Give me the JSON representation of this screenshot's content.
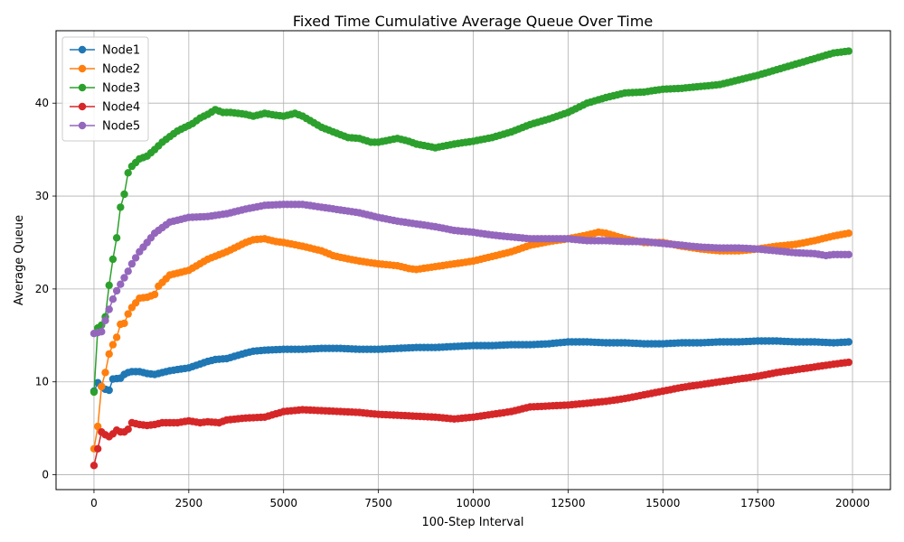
{
  "chart_data": {
    "type": "line",
    "title": "Fixed Time Cumulative Average Queue Over Time",
    "xlabel": "100-Step Interval",
    "ylabel": "Average Queue",
    "xlim": [
      -1000,
      21000
    ],
    "ylim": [
      -1.6,
      47.8
    ],
    "xticks": [
      0,
      2500,
      5000,
      7500,
      10000,
      12500,
      15000,
      17500,
      20000
    ],
    "xtick_labels": [
      "0",
      "2500",
      "5000",
      "7500",
      "10000",
      "12500",
      "15000",
      "17500",
      "20000"
    ],
    "yticks": [
      0,
      10,
      20,
      30,
      40
    ],
    "ytick_labels": [
      "0",
      "10",
      "20",
      "30",
      "40"
    ],
    "grid": true,
    "legend_position": "top-left",
    "x_step": 100,
    "series": [
      {
        "name": "Node1",
        "color": "#1f77b4",
        "points": [
          [
            0,
            9.0
          ],
          [
            100,
            9.9
          ],
          [
            200,
            9.5
          ],
          [
            300,
            9.2
          ],
          [
            400,
            9.1
          ],
          [
            500,
            10.3
          ],
          [
            700,
            10.4
          ],
          [
            800,
            10.8
          ],
          [
            900,
            11.0
          ],
          [
            1000,
            11.1
          ],
          [
            1200,
            11.1
          ],
          [
            1400,
            10.9
          ],
          [
            1600,
            10.8
          ],
          [
            1800,
            11.0
          ],
          [
            2000,
            11.2
          ],
          [
            2500,
            11.5
          ],
          [
            3000,
            12.2
          ],
          [
            3200,
            12.4
          ],
          [
            3500,
            12.5
          ],
          [
            4000,
            13.1
          ],
          [
            4200,
            13.3
          ],
          [
            4500,
            13.4
          ],
          [
            5000,
            13.5
          ],
          [
            5500,
            13.5
          ],
          [
            6000,
            13.6
          ],
          [
            6500,
            13.6
          ],
          [
            7000,
            13.5
          ],
          [
            7500,
            13.5
          ],
          [
            8000,
            13.6
          ],
          [
            8500,
            13.7
          ],
          [
            9000,
            13.7
          ],
          [
            9500,
            13.8
          ],
          [
            10000,
            13.9
          ],
          [
            10500,
            13.9
          ],
          [
            11000,
            14.0
          ],
          [
            11500,
            14.0
          ],
          [
            12000,
            14.1
          ],
          [
            12500,
            14.3
          ],
          [
            13000,
            14.3
          ],
          [
            13500,
            14.2
          ],
          [
            14000,
            14.2
          ],
          [
            14500,
            14.1
          ],
          [
            15000,
            14.1
          ],
          [
            15500,
            14.2
          ],
          [
            16000,
            14.2
          ],
          [
            16500,
            14.3
          ],
          [
            17000,
            14.3
          ],
          [
            17500,
            14.4
          ],
          [
            18000,
            14.4
          ],
          [
            18500,
            14.3
          ],
          [
            19000,
            14.3
          ],
          [
            19500,
            14.2
          ],
          [
            19900,
            14.3
          ]
        ]
      },
      {
        "name": "Node2",
        "color": "#ff7f0e",
        "points": [
          [
            0,
            2.8
          ],
          [
            100,
            5.2
          ],
          [
            200,
            9.5
          ],
          [
            300,
            11.0
          ],
          [
            400,
            13.0
          ],
          [
            500,
            14.0
          ],
          [
            600,
            14.8
          ],
          [
            700,
            16.2
          ],
          [
            800,
            16.3
          ],
          [
            900,
            17.3
          ],
          [
            1000,
            18.0
          ],
          [
            1200,
            19.0
          ],
          [
            1400,
            19.1
          ],
          [
            1600,
            19.4
          ],
          [
            1700,
            20.3
          ],
          [
            1800,
            20.7
          ],
          [
            2000,
            21.5
          ],
          [
            2500,
            22.0
          ],
          [
            3000,
            23.2
          ],
          [
            3500,
            24.0
          ],
          [
            4000,
            25.0
          ],
          [
            4200,
            25.3
          ],
          [
            4500,
            25.4
          ],
          [
            4800,
            25.1
          ],
          [
            5000,
            25.0
          ],
          [
            5500,
            24.6
          ],
          [
            6000,
            24.1
          ],
          [
            6300,
            23.6
          ],
          [
            6500,
            23.4
          ],
          [
            7000,
            23.0
          ],
          [
            7500,
            22.7
          ],
          [
            8000,
            22.5
          ],
          [
            8300,
            22.2
          ],
          [
            8500,
            22.1
          ],
          [
            9000,
            22.4
          ],
          [
            9500,
            22.7
          ],
          [
            10000,
            23.0
          ],
          [
            10500,
            23.5
          ],
          [
            11000,
            24.0
          ],
          [
            11500,
            24.7
          ],
          [
            12000,
            25.1
          ],
          [
            12500,
            25.4
          ],
          [
            13000,
            25.8
          ],
          [
            13300,
            26.1
          ],
          [
            13500,
            26.0
          ],
          [
            14000,
            25.4
          ],
          [
            14500,
            25.0
          ],
          [
            15000,
            25.0
          ],
          [
            15500,
            24.6
          ],
          [
            16000,
            24.3
          ],
          [
            16500,
            24.1
          ],
          [
            17000,
            24.1
          ],
          [
            17500,
            24.3
          ],
          [
            18000,
            24.6
          ],
          [
            18500,
            24.8
          ],
          [
            19000,
            25.2
          ],
          [
            19500,
            25.7
          ],
          [
            19900,
            26.0
          ]
        ]
      },
      {
        "name": "Node3",
        "color": "#2ca02c",
        "points": [
          [
            0,
            8.9
          ],
          [
            100,
            15.8
          ],
          [
            200,
            16.1
          ],
          [
            300,
            17.0
          ],
          [
            400,
            20.4
          ],
          [
            500,
            23.2
          ],
          [
            600,
            25.5
          ],
          [
            700,
            28.8
          ],
          [
            800,
            30.2
          ],
          [
            900,
            32.5
          ],
          [
            1000,
            33.2
          ],
          [
            1100,
            33.6
          ],
          [
            1200,
            34.0
          ],
          [
            1400,
            34.3
          ],
          [
            1600,
            35.0
          ],
          [
            1800,
            35.8
          ],
          [
            2000,
            36.4
          ],
          [
            2200,
            37.0
          ],
          [
            2400,
            37.4
          ],
          [
            2600,
            37.8
          ],
          [
            2800,
            38.4
          ],
          [
            3000,
            38.8
          ],
          [
            3200,
            39.3
          ],
          [
            3400,
            39.0
          ],
          [
            3600,
            39.0
          ],
          [
            3800,
            38.9
          ],
          [
            4000,
            38.8
          ],
          [
            4200,
            38.6
          ],
          [
            4500,
            38.9
          ],
          [
            4800,
            38.7
          ],
          [
            5000,
            38.6
          ],
          [
            5300,
            38.9
          ],
          [
            5500,
            38.6
          ],
          [
            6000,
            37.4
          ],
          [
            6500,
            36.6
          ],
          [
            6700,
            36.3
          ],
          [
            7000,
            36.2
          ],
          [
            7300,
            35.8
          ],
          [
            7500,
            35.8
          ],
          [
            8000,
            36.2
          ],
          [
            8300,
            35.9
          ],
          [
            8500,
            35.6
          ],
          [
            9000,
            35.2
          ],
          [
            9500,
            35.6
          ],
          [
            10000,
            35.9
          ],
          [
            10500,
            36.3
          ],
          [
            11000,
            36.9
          ],
          [
            11500,
            37.7
          ],
          [
            12000,
            38.3
          ],
          [
            12500,
            39.0
          ],
          [
            13000,
            40.0
          ],
          [
            13500,
            40.6
          ],
          [
            14000,
            41.1
          ],
          [
            14500,
            41.2
          ],
          [
            15000,
            41.5
          ],
          [
            15500,
            41.6
          ],
          [
            16000,
            41.8
          ],
          [
            16500,
            42.0
          ],
          [
            17000,
            42.5
          ],
          [
            17500,
            43.0
          ],
          [
            18000,
            43.6
          ],
          [
            18500,
            44.2
          ],
          [
            19000,
            44.8
          ],
          [
            19500,
            45.4
          ],
          [
            19900,
            45.6
          ]
        ]
      },
      {
        "name": "Node4",
        "color": "#d62728",
        "points": [
          [
            0,
            1.0
          ],
          [
            100,
            2.8
          ],
          [
            200,
            4.6
          ],
          [
            300,
            4.3
          ],
          [
            400,
            4.1
          ],
          [
            500,
            4.4
          ],
          [
            600,
            4.8
          ],
          [
            700,
            4.6
          ],
          [
            800,
            4.6
          ],
          [
            900,
            4.9
          ],
          [
            1000,
            5.6
          ],
          [
            1200,
            5.4
          ],
          [
            1400,
            5.3
          ],
          [
            1600,
            5.4
          ],
          [
            1800,
            5.6
          ],
          [
            2000,
            5.6
          ],
          [
            2200,
            5.6
          ],
          [
            2500,
            5.8
          ],
          [
            2800,
            5.6
          ],
          [
            3000,
            5.7
          ],
          [
            3300,
            5.6
          ],
          [
            3500,
            5.9
          ],
          [
            4000,
            6.1
          ],
          [
            4500,
            6.2
          ],
          [
            5000,
            6.8
          ],
          [
            5500,
            7.0
          ],
          [
            6000,
            6.9
          ],
          [
            6500,
            6.8
          ],
          [
            7000,
            6.7
          ],
          [
            7500,
            6.5
          ],
          [
            8000,
            6.4
          ],
          [
            8500,
            6.3
          ],
          [
            9000,
            6.2
          ],
          [
            9500,
            6.0
          ],
          [
            10000,
            6.2
          ],
          [
            10500,
            6.5
          ],
          [
            11000,
            6.8
          ],
          [
            11500,
            7.3
          ],
          [
            12000,
            7.4
          ],
          [
            12500,
            7.5
          ],
          [
            13000,
            7.7
          ],
          [
            13500,
            7.9
          ],
          [
            14000,
            8.2
          ],
          [
            14500,
            8.6
          ],
          [
            15000,
            9.0
          ],
          [
            15500,
            9.4
          ],
          [
            16000,
            9.7
          ],
          [
            16500,
            10.0
          ],
          [
            17000,
            10.3
          ],
          [
            17500,
            10.6
          ],
          [
            18000,
            11.0
          ],
          [
            18500,
            11.3
          ],
          [
            19000,
            11.6
          ],
          [
            19500,
            11.9
          ],
          [
            19900,
            12.1
          ]
        ]
      },
      {
        "name": "Node5",
        "color": "#9467bd",
        "points": [
          [
            0,
            15.2
          ],
          [
            100,
            15.3
          ],
          [
            200,
            15.4
          ],
          [
            300,
            16.6
          ],
          [
            400,
            17.8
          ],
          [
            500,
            18.9
          ],
          [
            600,
            19.8
          ],
          [
            700,
            20.5
          ],
          [
            800,
            21.2
          ],
          [
            900,
            21.9
          ],
          [
            1000,
            22.7
          ],
          [
            1200,
            24.0
          ],
          [
            1400,
            25.0
          ],
          [
            1600,
            26.0
          ],
          [
            1800,
            26.6
          ],
          [
            2000,
            27.2
          ],
          [
            2500,
            27.7
          ],
          [
            3000,
            27.8
          ],
          [
            3500,
            28.1
          ],
          [
            4000,
            28.6
          ],
          [
            4500,
            29.0
          ],
          [
            5000,
            29.1
          ],
          [
            5500,
            29.1
          ],
          [
            6000,
            28.8
          ],
          [
            6500,
            28.5
          ],
          [
            7000,
            28.2
          ],
          [
            7500,
            27.7
          ],
          [
            8000,
            27.3
          ],
          [
            8500,
            27.0
          ],
          [
            9000,
            26.7
          ],
          [
            9500,
            26.3
          ],
          [
            10000,
            26.1
          ],
          [
            10500,
            25.8
          ],
          [
            11000,
            25.6
          ],
          [
            11500,
            25.4
          ],
          [
            12000,
            25.4
          ],
          [
            12500,
            25.4
          ],
          [
            13000,
            25.2
          ],
          [
            13500,
            25.2
          ],
          [
            14000,
            25.1
          ],
          [
            14500,
            25.1
          ],
          [
            15000,
            24.9
          ],
          [
            15500,
            24.7
          ],
          [
            16000,
            24.5
          ],
          [
            16500,
            24.4
          ],
          [
            17000,
            24.4
          ],
          [
            17500,
            24.3
          ],
          [
            18000,
            24.1
          ],
          [
            18500,
            23.9
          ],
          [
            19000,
            23.8
          ],
          [
            19300,
            23.6
          ],
          [
            19500,
            23.7
          ],
          [
            19900,
            23.7
          ]
        ]
      }
    ]
  }
}
